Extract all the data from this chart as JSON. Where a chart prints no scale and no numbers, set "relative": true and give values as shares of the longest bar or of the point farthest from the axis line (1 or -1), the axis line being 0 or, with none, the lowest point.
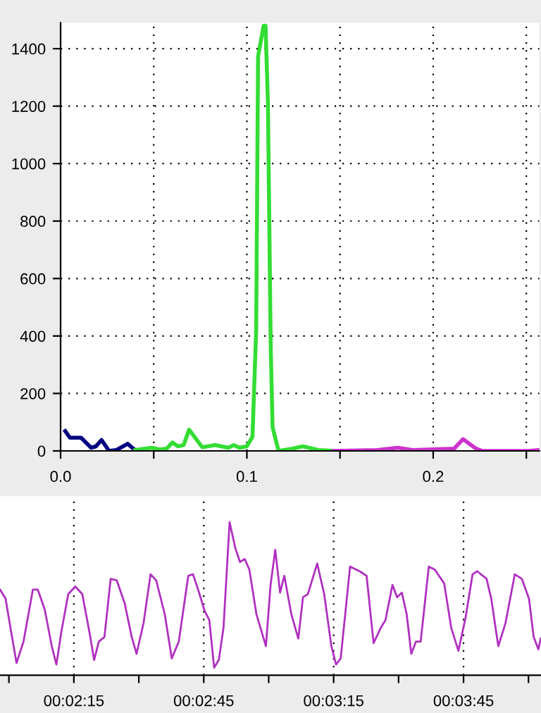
{
  "chart_data": [
    {
      "type": "line",
      "xlim": [
        0,
        0.257
      ],
      "ylim": [
        0,
        1490
      ],
      "xticks": [
        {
          "value": 0,
          "label": "0.0"
        },
        {
          "value": 0.05,
          "label": null
        },
        0.1,
        {
          "value": 0.15,
          "label": null
        },
        0.2,
        {
          "value": 0.25,
          "label": null
        }
      ],
      "yticks": [
        0,
        200,
        400,
        600,
        800,
        1000,
        1200,
        1400
      ],
      "grid": true,
      "line_style": "solid",
      "series": [
        {
          "color": "#000080",
          "x": [
            0.0025,
            0.005,
            0.011,
            0.0164,
            0.019,
            0.022,
            0.026,
            0.03,
            0.036,
            0.039,
            0.04
          ],
          "values": [
            69,
            46,
            46,
            11,
            16,
            38,
            0,
            3,
            25,
            8,
            3
          ]
        },
        {
          "color": "#33dd33",
          "x": [
            0.04,
            0.049,
            0.053,
            0.057,
            0.06,
            0.063,
            0.066,
            0.069,
            0.076,
            0.083,
            0.09,
            0.093,
            0.096,
            0.1,
            0.103,
            0.105,
            0.106,
            0.109,
            0.11,
            0.1113,
            0.1128,
            0.1138,
            0.117,
            0.1246,
            0.13,
            0.1384,
            0.1465
          ],
          "values": [
            3,
            11,
            5,
            8,
            29,
            16,
            20,
            74,
            13,
            20,
            11,
            20,
            11,
            16,
            49,
            425,
            1373,
            1480,
            1480,
            1209,
            359,
            82,
            0,
            8,
            16,
            3,
            0
          ]
        },
        {
          "color": "#cc33cc",
          "x": [
            0.1465,
            0.17,
            0.181,
            0.189,
            0.2113,
            0.216,
            0.223,
            0.2264,
            0.2515,
            0.2565
          ],
          "values": [
            0,
            3,
            11,
            3,
            8,
            41,
            8,
            0,
            0,
            3
          ]
        }
      ]
    },
    {
      "type": "line",
      "relative": true,
      "tick_labels": "x",
      "grid": "x",
      "line_style": "solid",
      "xlim": [
        0.03276,
        0.06747
      ],
      "xticks": [
        {
          "value": 0.033333,
          "label": null
        },
        {
          "value": 0.0375,
          "label": "00:02:15"
        },
        {
          "value": 0.041667,
          "label": null
        },
        {
          "value": 0.045833,
          "label": "00:02:45"
        },
        {
          "value": 0.05,
          "label": null
        },
        {
          "value": 0.054167,
          "label": "00:03:15"
        },
        {
          "value": 0.058333,
          "label": null
        },
        {
          "value": 0.0625,
          "label": "00:03:45"
        },
        {
          "value": 0.066667,
          "label": null
        }
      ],
      "series": [
        {
          "color": "#b030c0",
          "x": [
            0.03276,
            0.03312,
            0.03343,
            0.03382,
            0.03427,
            0.03487,
            0.03518,
            0.03563,
            0.03608,
            0.03638,
            0.03669,
            0.03714,
            0.03759,
            0.03804,
            0.0385,
            0.0388,
            0.0391,
            0.03946,
            0.03986,
            0.04025,
            0.04076,
            0.04121,
            0.04152,
            0.04197,
            0.04242,
            0.04278,
            0.04333,
            0.04378,
            0.04423,
            0.04484,
            0.04514,
            0.04544,
            0.04589,
            0.04619,
            0.0465,
            0.0468,
            0.0471,
            0.04749,
            0.04786,
            0.04816,
            0.04846,
            0.04876,
            0.04921,
            0.04982,
            0.05012,
            0.05042,
            0.05073,
            0.051,
            0.05145,
            0.0519,
            0.0522,
            0.05251,
            0.05311,
            0.05356,
            0.05402,
            0.05432,
            0.05462,
            0.05522,
            0.05583,
            0.05628,
            0.05673,
            0.05719,
            0.05749,
            0.05794,
            0.05824,
            0.05854,
            0.05885,
            0.05915,
            0.05945,
            0.05975,
            0.06027,
            0.06066,
            0.06126,
            0.06171,
            0.06217,
            0.06262,
            0.06308,
            0.06338,
            0.06398,
            0.06428,
            0.06473,
            0.06519,
            0.06579,
            0.06624,
            0.0667,
            0.067,
            0.0673,
            0.06745
          ],
          "values": [
            0.56,
            0.5,
            0.31,
            0.08,
            0.22,
            0.56,
            0.56,
            0.43,
            0.19,
            0.07,
            0.28,
            0.53,
            0.58,
            0.53,
            0.28,
            0.1,
            0.22,
            0.25,
            0.63,
            0.62,
            0.47,
            0.25,
            0.14,
            0.34,
            0.66,
            0.62,
            0.4,
            0.11,
            0.22,
            0.65,
            0.66,
            0.57,
            0.42,
            0.36,
            0.05,
            0.1,
            0.31,
            1.0,
            0.83,
            0.74,
            0.76,
            0.69,
            0.4,
            0.19,
            0.59,
            0.82,
            0.54,
            0.65,
            0.4,
            0.24,
            0.51,
            0.53,
            0.73,
            0.53,
            0.19,
            0.07,
            0.11,
            0.71,
            0.68,
            0.65,
            0.21,
            0.31,
            0.36,
            0.59,
            0.51,
            0.54,
            0.4,
            0.14,
            0.22,
            0.22,
            0.71,
            0.69,
            0.6,
            0.31,
            0.16,
            0.37,
            0.66,
            0.68,
            0.63,
            0.5,
            0.19,
            0.34,
            0.66,
            0.63,
            0.5,
            0.25,
            0.17,
            0.24
          ]
        }
      ]
    }
  ]
}
